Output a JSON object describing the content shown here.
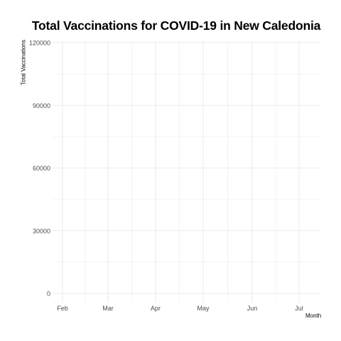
{
  "chart_data": {
    "type": "line",
    "title": "Total Vaccinations for COVID-19 in New Caledonia",
    "xlabel": "Month",
    "ylabel": "Total Vaccinations",
    "x_ticks": [
      "Feb",
      "Mar",
      "Apr",
      "May",
      "Jun",
      "Jul"
    ],
    "y_ticks": [
      0,
      30000,
      60000,
      90000,
      120000
    ],
    "ylim": [
      0,
      120000
    ],
    "series": [],
    "grid": true,
    "legend": "none",
    "colors": {
      "grid": "#ebebeb",
      "text": "#4d4d4d"
    }
  }
}
